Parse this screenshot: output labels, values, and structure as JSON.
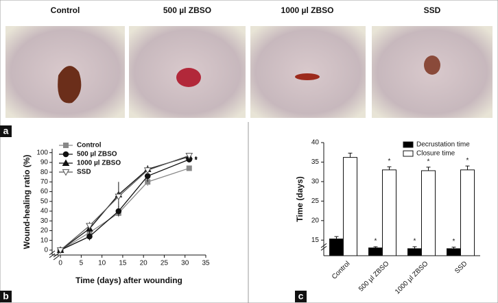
{
  "panels": {
    "photo_titles": [
      "Control",
      "500 µl ZBSO",
      "1000 µl ZBSO",
      "SSD"
    ],
    "labels": [
      "a",
      "b",
      "c"
    ]
  },
  "chart_data": [
    {
      "type": "line",
      "x_label": "Time (days) after wounding",
      "y_label": "Wound-healing ratio (%)",
      "x": [
        0,
        7,
        14,
        21,
        31
      ],
      "series": [
        {
          "name": "Control",
          "color": "#888888",
          "marker": "square",
          "marker_fill": "#888888",
          "values": [
            0,
            18,
            38,
            70,
            84
          ],
          "errors": [
            0,
            3,
            4,
            4,
            2
          ],
          "significance": [
            null,
            null,
            null,
            null,
            null
          ]
        },
        {
          "name": "500 µl ZBSO",
          "color": "#111111",
          "marker": "circle",
          "marker_fill": "#111111",
          "values": [
            0,
            14,
            40,
            76,
            93
          ],
          "errors": [
            0,
            4,
            5,
            6,
            2
          ],
          "significance": [
            null,
            null,
            null,
            null,
            "*"
          ]
        },
        {
          "name": "1000 µl ZBSO",
          "color": "#111111",
          "marker": "triangle",
          "marker_fill": "#111111",
          "values": [
            0,
            22,
            57,
            83,
            96
          ],
          "errors": [
            0,
            4,
            13,
            4,
            2
          ],
          "significance": [
            null,
            null,
            null,
            null,
            "*"
          ]
        },
        {
          "name": "SSD",
          "color": "#555555",
          "marker": "triangle-down",
          "marker_fill": "#ffffff",
          "values": [
            0,
            25,
            55,
            82,
            97
          ],
          "errors": [
            0,
            4,
            5,
            4,
            2
          ],
          "significance": [
            null,
            null,
            null,
            null,
            "*"
          ]
        }
      ],
      "xlim": [
        -2,
        35
      ],
      "xticks": [
        0,
        5,
        10,
        15,
        20,
        25,
        30,
        35
      ],
      "ylim": [
        -5,
        104
      ],
      "yticks": [
        0,
        10,
        20,
        30,
        40,
        50,
        60,
        70,
        80,
        90,
        100
      ]
    },
    {
      "type": "bar",
      "y_label": "Time (days)",
      "categories": [
        "Control",
        "500 µl ZBSO",
        "1000 µl ZBSO",
        "SSD"
      ],
      "series": [
        {
          "name": "Decrustation time",
          "color": "#000000",
          "values": [
            15.3,
            13.0,
            12.8,
            12.8
          ],
          "errors": [
            0.6,
            0.3,
            0.5,
            0.4
          ],
          "significance": [
            null,
            "*",
            "*",
            "*"
          ]
        },
        {
          "name": "Closure time",
          "color": "#ffffff",
          "values": [
            36.2,
            33.0,
            32.8,
            33.0
          ],
          "errors": [
            1.1,
            0.8,
            0.9,
            1.0
          ],
          "significance": [
            null,
            "*",
            "*",
            "*"
          ]
        }
      ],
      "ylim": [
        11,
        40
      ],
      "yticks": [
        15,
        20,
        25,
        30,
        35,
        40
      ]
    }
  ]
}
